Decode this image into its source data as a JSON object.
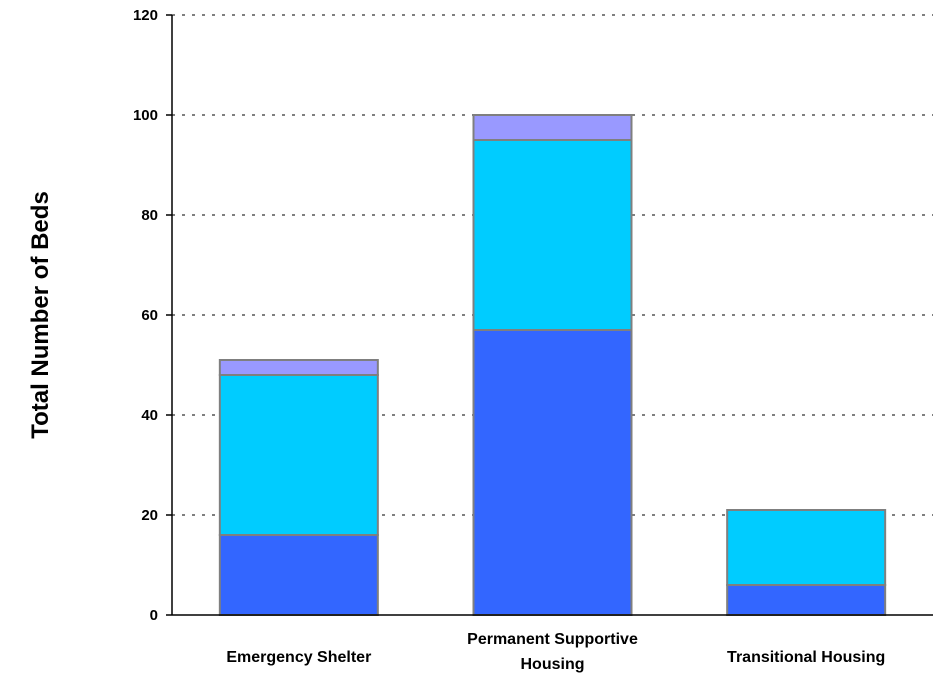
{
  "chart_data": {
    "type": "bar",
    "stacked": true,
    "categories": [
      "Emergency Shelter",
      "Permanent Supportive Housing",
      "Transitional Housing"
    ],
    "series": [
      {
        "values": [
          16,
          57,
          6
        ],
        "color": "#3366ff"
      },
      {
        "values": [
          32,
          38,
          15
        ],
        "color": "#00ccff"
      },
      {
        "values": [
          3,
          5,
          0
        ],
        "color": "#9999ff"
      }
    ],
    "title": "",
    "xlabel": "",
    "ylabel": "Total Number of Beds",
    "ylim": [
      0,
      120
    ],
    "yticks": [
      0,
      20,
      40,
      60,
      80,
      100,
      120
    ],
    "grid": true,
    "legend": "none"
  }
}
